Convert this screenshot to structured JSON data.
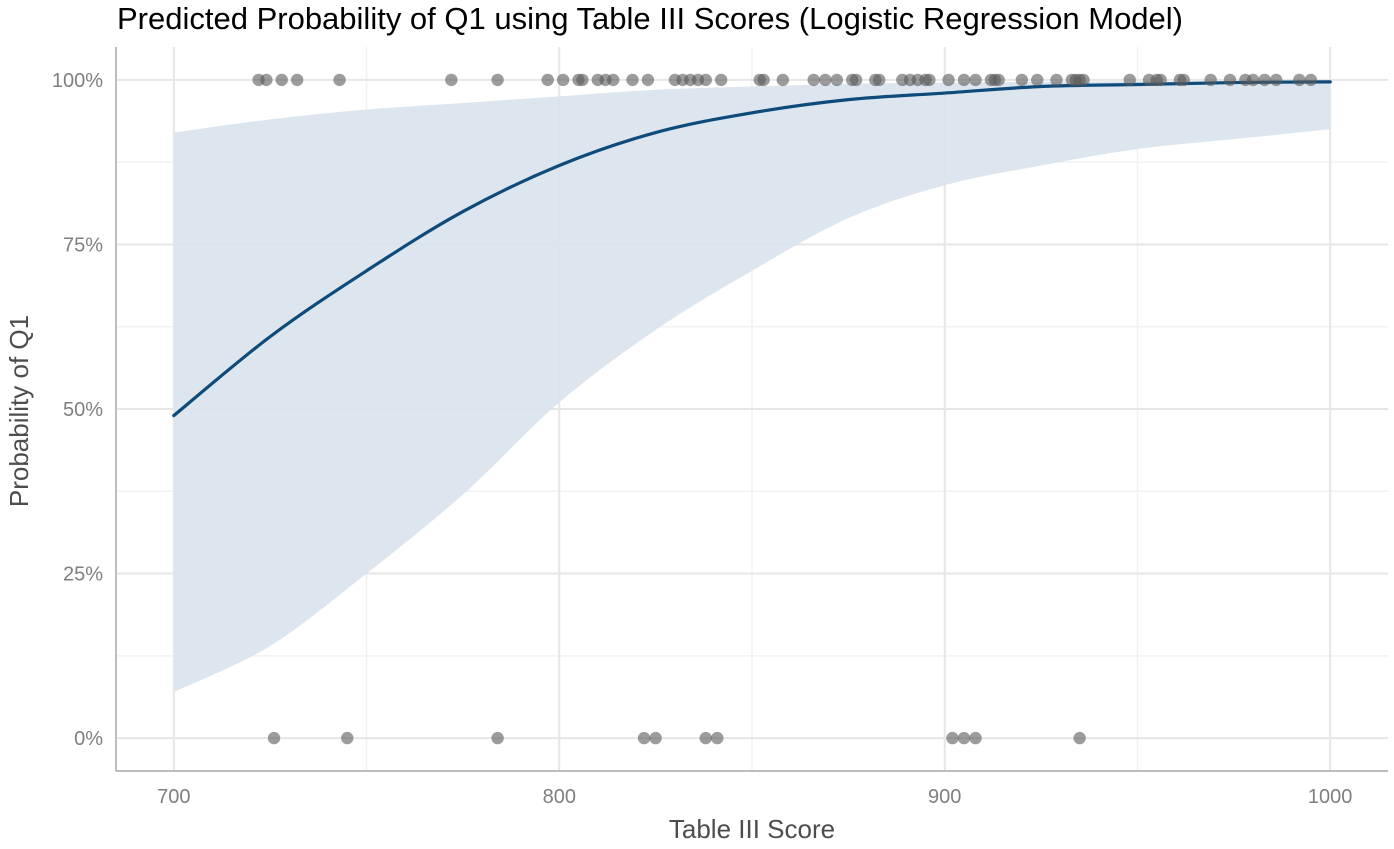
{
  "chart_data": {
    "type": "line",
    "title": "Predicted Probability of Q1 using Table III Scores (Logistic Regression Model)",
    "xlabel": "Table III Score",
    "ylabel": "Probability of Q1",
    "xlim": [
      685,
      1015
    ],
    "ylim": [
      -0.05,
      1.05
    ],
    "x_ticks": [
      700,
      800,
      900,
      1000
    ],
    "x_tick_labels": [
      "700",
      "800",
      "900",
      "1000"
    ],
    "y_ticks": [
      0,
      0.25,
      0.5,
      0.75,
      1
    ],
    "y_tick_labels": [
      "0%",
      "25%",
      "50%",
      "75%",
      "100%"
    ],
    "grid": true,
    "legend": "none",
    "colors": {
      "fit_line": "#0e4a7a",
      "ribbon": "#d9e3ec",
      "points": "#5a5a5a"
    },
    "series": [
      {
        "type": "line",
        "x": [
          700,
          725,
          750,
          775,
          800,
          825,
          850,
          875,
          900,
          925,
          950,
          975,
          1000
        ],
        "values": [
          0.49,
          0.61,
          0.71,
          0.8,
          0.87,
          0.92,
          0.95,
          0.97,
          0.98,
          0.99,
          0.993,
          0.996,
          0.997
        ]
      },
      {
        "type": "ribbon",
        "x": [
          700,
          725,
          750,
          775,
          800,
          825,
          850,
          875,
          900,
          925,
          950,
          975,
          1000
        ],
        "lower": [
          0.07,
          0.14,
          0.25,
          0.37,
          0.51,
          0.62,
          0.71,
          0.79,
          0.84,
          0.87,
          0.895,
          0.91,
          0.925
        ],
        "upper": [
          0.92,
          0.94,
          0.955,
          0.965,
          0.975,
          0.985,
          0.99,
          0.994,
          0.996,
          0.997,
          0.998,
          0.998,
          0.999
        ]
      },
      {
        "type": "scatter",
        "points": [
          [
            722,
            1
          ],
          [
            724,
            1
          ],
          [
            728,
            1
          ],
          [
            732,
            1
          ],
          [
            743,
            1
          ],
          [
            772,
            1
          ],
          [
            784,
            1
          ],
          [
            797,
            1
          ],
          [
            801,
            1
          ],
          [
            805,
            1
          ],
          [
            806,
            1
          ],
          [
            810,
            1
          ],
          [
            812,
            1
          ],
          [
            814,
            1
          ],
          [
            819,
            1
          ],
          [
            823,
            1
          ],
          [
            830,
            1
          ],
          [
            832,
            1
          ],
          [
            834,
            1
          ],
          [
            836,
            1
          ],
          [
            838,
            1
          ],
          [
            842,
            1
          ],
          [
            852,
            1
          ],
          [
            853,
            1
          ],
          [
            858,
            1
          ],
          [
            866,
            1
          ],
          [
            869,
            1
          ],
          [
            872,
            1
          ],
          [
            876,
            1
          ],
          [
            877,
            1
          ],
          [
            882,
            1
          ],
          [
            883,
            1
          ],
          [
            889,
            1
          ],
          [
            891,
            1
          ],
          [
            893,
            1
          ],
          [
            895,
            1
          ],
          [
            896,
            1
          ],
          [
            901,
            1
          ],
          [
            905,
            1
          ],
          [
            908,
            1
          ],
          [
            912,
            1
          ],
          [
            913,
            1
          ],
          [
            914,
            1
          ],
          [
            920,
            1
          ],
          [
            924,
            1
          ],
          [
            929,
            1
          ],
          [
            933,
            1
          ],
          [
            934,
            1
          ],
          [
            935,
            1
          ],
          [
            936,
            1
          ],
          [
            948,
            1
          ],
          [
            953,
            1
          ],
          [
            955,
            1
          ],
          [
            956,
            1
          ],
          [
            961,
            1
          ],
          [
            962,
            1
          ],
          [
            969,
            1
          ],
          [
            974,
            1
          ],
          [
            978,
            1
          ],
          [
            980,
            1
          ],
          [
            983,
            1
          ],
          [
            986,
            1
          ],
          [
            992,
            1
          ],
          [
            995,
            1
          ],
          [
            726,
            0
          ],
          [
            745,
            0
          ],
          [
            784,
            0
          ],
          [
            822,
            0
          ],
          [
            825,
            0
          ],
          [
            838,
            0
          ],
          [
            841,
            0
          ],
          [
            902,
            0
          ],
          [
            905,
            0
          ],
          [
            908,
            0
          ],
          [
            935,
            0
          ]
        ]
      }
    ]
  }
}
